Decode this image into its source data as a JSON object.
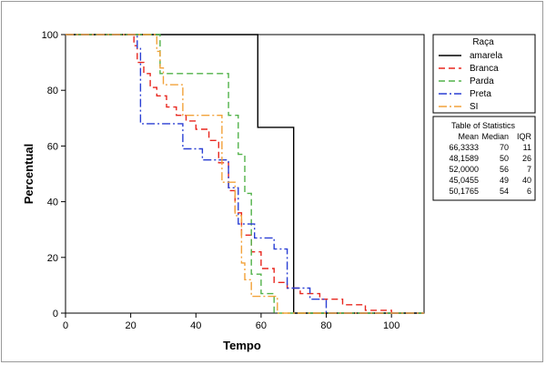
{
  "chart_data": {
    "type": "line",
    "step": true,
    "title": "",
    "xlabel": "Tempo",
    "ylabel": "Percentual",
    "xlim": [
      0,
      110
    ],
    "ylim": [
      0,
      100
    ],
    "x_ticks": [
      0,
      20,
      40,
      60,
      80,
      100
    ],
    "y_ticks": [
      0,
      20,
      40,
      60,
      80,
      100
    ],
    "grid": false,
    "legend": {
      "title": "Raça",
      "placement": "right",
      "entries": [
        "amarela",
        "Branca",
        "Parda",
        "Preta",
        "SI"
      ]
    },
    "stats_table": {
      "title": "Table of Statistics",
      "columns": [
        "Mean",
        "Median",
        "IQR"
      ],
      "rows": [
        [
          "66,3333",
          "70",
          "11"
        ],
        [
          "48,1589",
          "50",
          "26"
        ],
        [
          "52,0000",
          "56",
          "7"
        ],
        [
          "45,0455",
          "49",
          "40"
        ],
        [
          "50,1765",
          "54",
          "6"
        ]
      ]
    },
    "series": [
      {
        "name": "amarela",
        "color": "#000000",
        "dash": "solid",
        "x": [
          0,
          59,
          59,
          70,
          70,
          110
        ],
        "y": [
          100,
          100,
          66.7,
          66.7,
          0,
          0
        ]
      },
      {
        "name": "Branca",
        "color": "#e8271f",
        "dash": "dashed",
        "x": [
          0,
          21,
          21,
          22,
          22,
          24,
          24,
          26,
          26,
          28,
          28,
          31,
          31,
          34,
          34,
          37,
          37,
          40,
          40,
          44,
          44,
          47,
          47,
          50,
          50,
          52,
          52,
          54,
          54,
          57,
          57,
          60,
          60,
          64,
          64,
          68,
          68,
          72,
          72,
          78,
          78,
          85,
          85,
          92,
          92,
          100,
          100,
          103
        ],
        "y": [
          100,
          100,
          96,
          96,
          90,
          90,
          86,
          86,
          81,
          81,
          78,
          78,
          74,
          74,
          71,
          71,
          69,
          69,
          66,
          66,
          62,
          62,
          54,
          54,
          44,
          44,
          36,
          36,
          28,
          28,
          22,
          22,
          16,
          16,
          11,
          11,
          9,
          9,
          7,
          7,
          5,
          5,
          3,
          3,
          1,
          1,
          0,
          0
        ]
      },
      {
        "name": "Parda",
        "color": "#52b24a",
        "dash": "dashed",
        "x": [
          0,
          29,
          29,
          50,
          50,
          53,
          53,
          55,
          55,
          57,
          57,
          60,
          60,
          64,
          64,
          110
        ],
        "y": [
          100,
          100,
          86,
          86,
          71,
          71,
          57,
          57,
          43,
          43,
          14,
          14,
          7,
          7,
          0,
          0
        ]
      },
      {
        "name": "Preta",
        "color": "#2a3fd4",
        "dash": "dashdot",
        "x": [
          0,
          22,
          22,
          23,
          23,
          30,
          30,
          36,
          36,
          42,
          42,
          50,
          50,
          53,
          53,
          58,
          58,
          64,
          64,
          68,
          68,
          75,
          75,
          80,
          80,
          110
        ],
        "y": [
          100,
          100,
          95,
          95,
          68,
          68,
          68,
          68,
          59,
          59,
          55,
          55,
          45,
          45,
          32,
          32,
          27,
          27,
          23,
          23,
          9,
          9,
          5,
          5,
          0,
          0
        ]
      },
      {
        "name": "SI",
        "color": "#f2a23a",
        "dash": "dashdot",
        "x": [
          0,
          28,
          28,
          29,
          29,
          30,
          30,
          36,
          36,
          48,
          48,
          52,
          52,
          54,
          54,
          55,
          55,
          57,
          57,
          62,
          62,
          65,
          65,
          110
        ],
        "y": [
          100,
          100,
          94,
          94,
          88,
          88,
          82,
          82,
          71,
          71,
          47,
          47,
          35,
          35,
          18,
          18,
          12,
          12,
          6,
          6,
          6,
          6,
          0,
          0
        ]
      }
    ]
  }
}
